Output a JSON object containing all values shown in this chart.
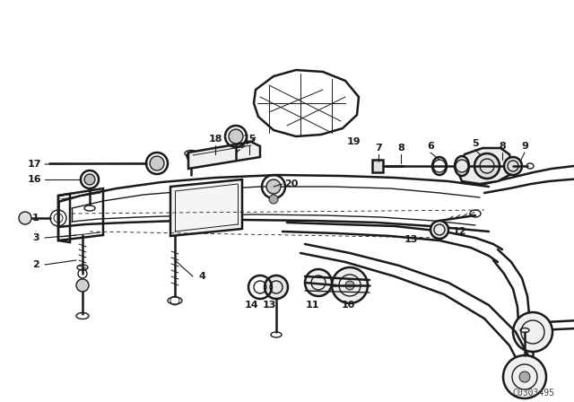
{
  "background_color": "#ffffff",
  "line_color": "#1a1a1a",
  "catalog_number": "C0303495",
  "fig_width": 6.4,
  "fig_height": 4.48,
  "dpi": 100
}
